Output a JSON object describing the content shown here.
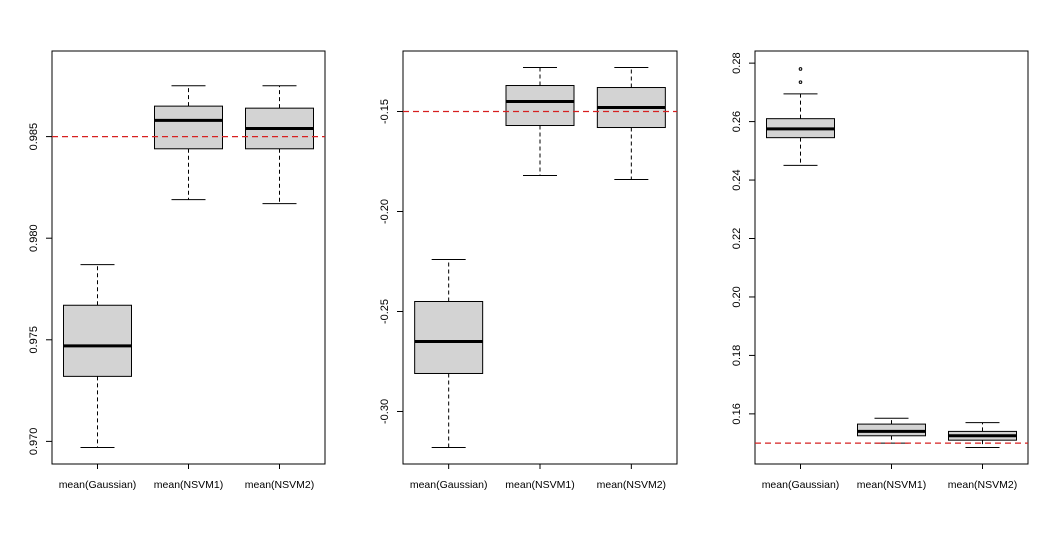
{
  "figure_title": "",
  "colors": {
    "box_fill": "#d3d3d3",
    "reference_line": "#d62020",
    "stroke": "#000000",
    "outlier": "#000000"
  },
  "chart_data": [
    {
      "type": "boxplot",
      "title": "",
      "xlabel": "",
      "ylabel": "",
      "categories": [
        "mean(Gaussian)",
        "mean(NSVM1)",
        "mean(NSVM2)"
      ],
      "ylim": [
        0.9697,
        0.9884
      ],
      "yticks": [
        0.97,
        0.975,
        0.98,
        0.985
      ],
      "ytick_labels": [
        "0.970",
        "0.975",
        "0.980",
        "0.985"
      ],
      "reference_line": 0.985,
      "boxes": [
        {
          "name": "mean(Gaussian)",
          "whisker_low": 0.9697,
          "q1": 0.9732,
          "median": 0.9747,
          "q3": 0.9767,
          "whisker_high": 0.9787,
          "outliers": []
        },
        {
          "name": "mean(NSVM1)",
          "whisker_low": 0.9819,
          "q1": 0.9844,
          "median": 0.9858,
          "q3": 0.9865,
          "whisker_high": 0.9875,
          "outliers": []
        },
        {
          "name": "mean(NSVM2)",
          "whisker_low": 0.9817,
          "q1": 0.9844,
          "median": 0.9854,
          "q3": 0.9864,
          "whisker_high": 0.9875,
          "outliers": []
        }
      ]
    },
    {
      "type": "boxplot",
      "title": "",
      "xlabel": "",
      "ylabel": "",
      "categories": [
        "mean(Gaussian)",
        "mean(NSVM1)",
        "mean(NSVM2)"
      ],
      "ylim": [
        -0.318,
        -0.128
      ],
      "yticks": [
        -0.3,
        -0.25,
        -0.2,
        -0.15
      ],
      "ytick_labels": [
        "-0.30",
        "-0.25",
        "-0.20",
        "-0.15"
      ],
      "reference_line": -0.15,
      "boxes": [
        {
          "name": "mean(Gaussian)",
          "whisker_low": -0.318,
          "q1": -0.281,
          "median": -0.265,
          "q3": -0.245,
          "whisker_high": -0.224,
          "outliers": []
        },
        {
          "name": "mean(NSVM1)",
          "whisker_low": -0.182,
          "q1": -0.157,
          "median": -0.145,
          "q3": -0.137,
          "whisker_high": -0.128,
          "outliers": []
        },
        {
          "name": "mean(NSVM2)",
          "whisker_low": -0.184,
          "q1": -0.158,
          "median": -0.148,
          "q3": -0.138,
          "whisker_high": -0.128,
          "outliers": []
        }
      ]
    },
    {
      "type": "boxplot",
      "title": "",
      "xlabel": "",
      "ylabel": "",
      "categories": [
        "mean(Gaussian)",
        "mean(NSVM1)",
        "mean(NSVM2)"
      ],
      "ylim": [
        0.1485,
        0.2785
      ],
      "yticks": [
        0.16,
        0.18,
        0.2,
        0.22,
        0.24,
        0.26,
        0.28
      ],
      "ytick_labels": [
        "0.16",
        "0.18",
        "0.20",
        "0.22",
        "0.24",
        "0.26",
        "0.28"
      ],
      "reference_line": 0.15,
      "boxes": [
        {
          "name": "mean(Gaussian)",
          "whisker_low": 0.245,
          "q1": 0.2545,
          "median": 0.2575,
          "q3": 0.261,
          "whisker_high": 0.2695,
          "outliers": [
            0.2735,
            0.278
          ]
        },
        {
          "name": "mean(NSVM1)",
          "whisker_low": 0.15,
          "q1": 0.1525,
          "median": 0.154,
          "q3": 0.1565,
          "whisker_high": 0.1585,
          "outliers": []
        },
        {
          "name": "mean(NSVM2)",
          "whisker_low": 0.1485,
          "q1": 0.151,
          "median": 0.1525,
          "q3": 0.154,
          "whisker_high": 0.157,
          "outliers": []
        }
      ]
    }
  ]
}
